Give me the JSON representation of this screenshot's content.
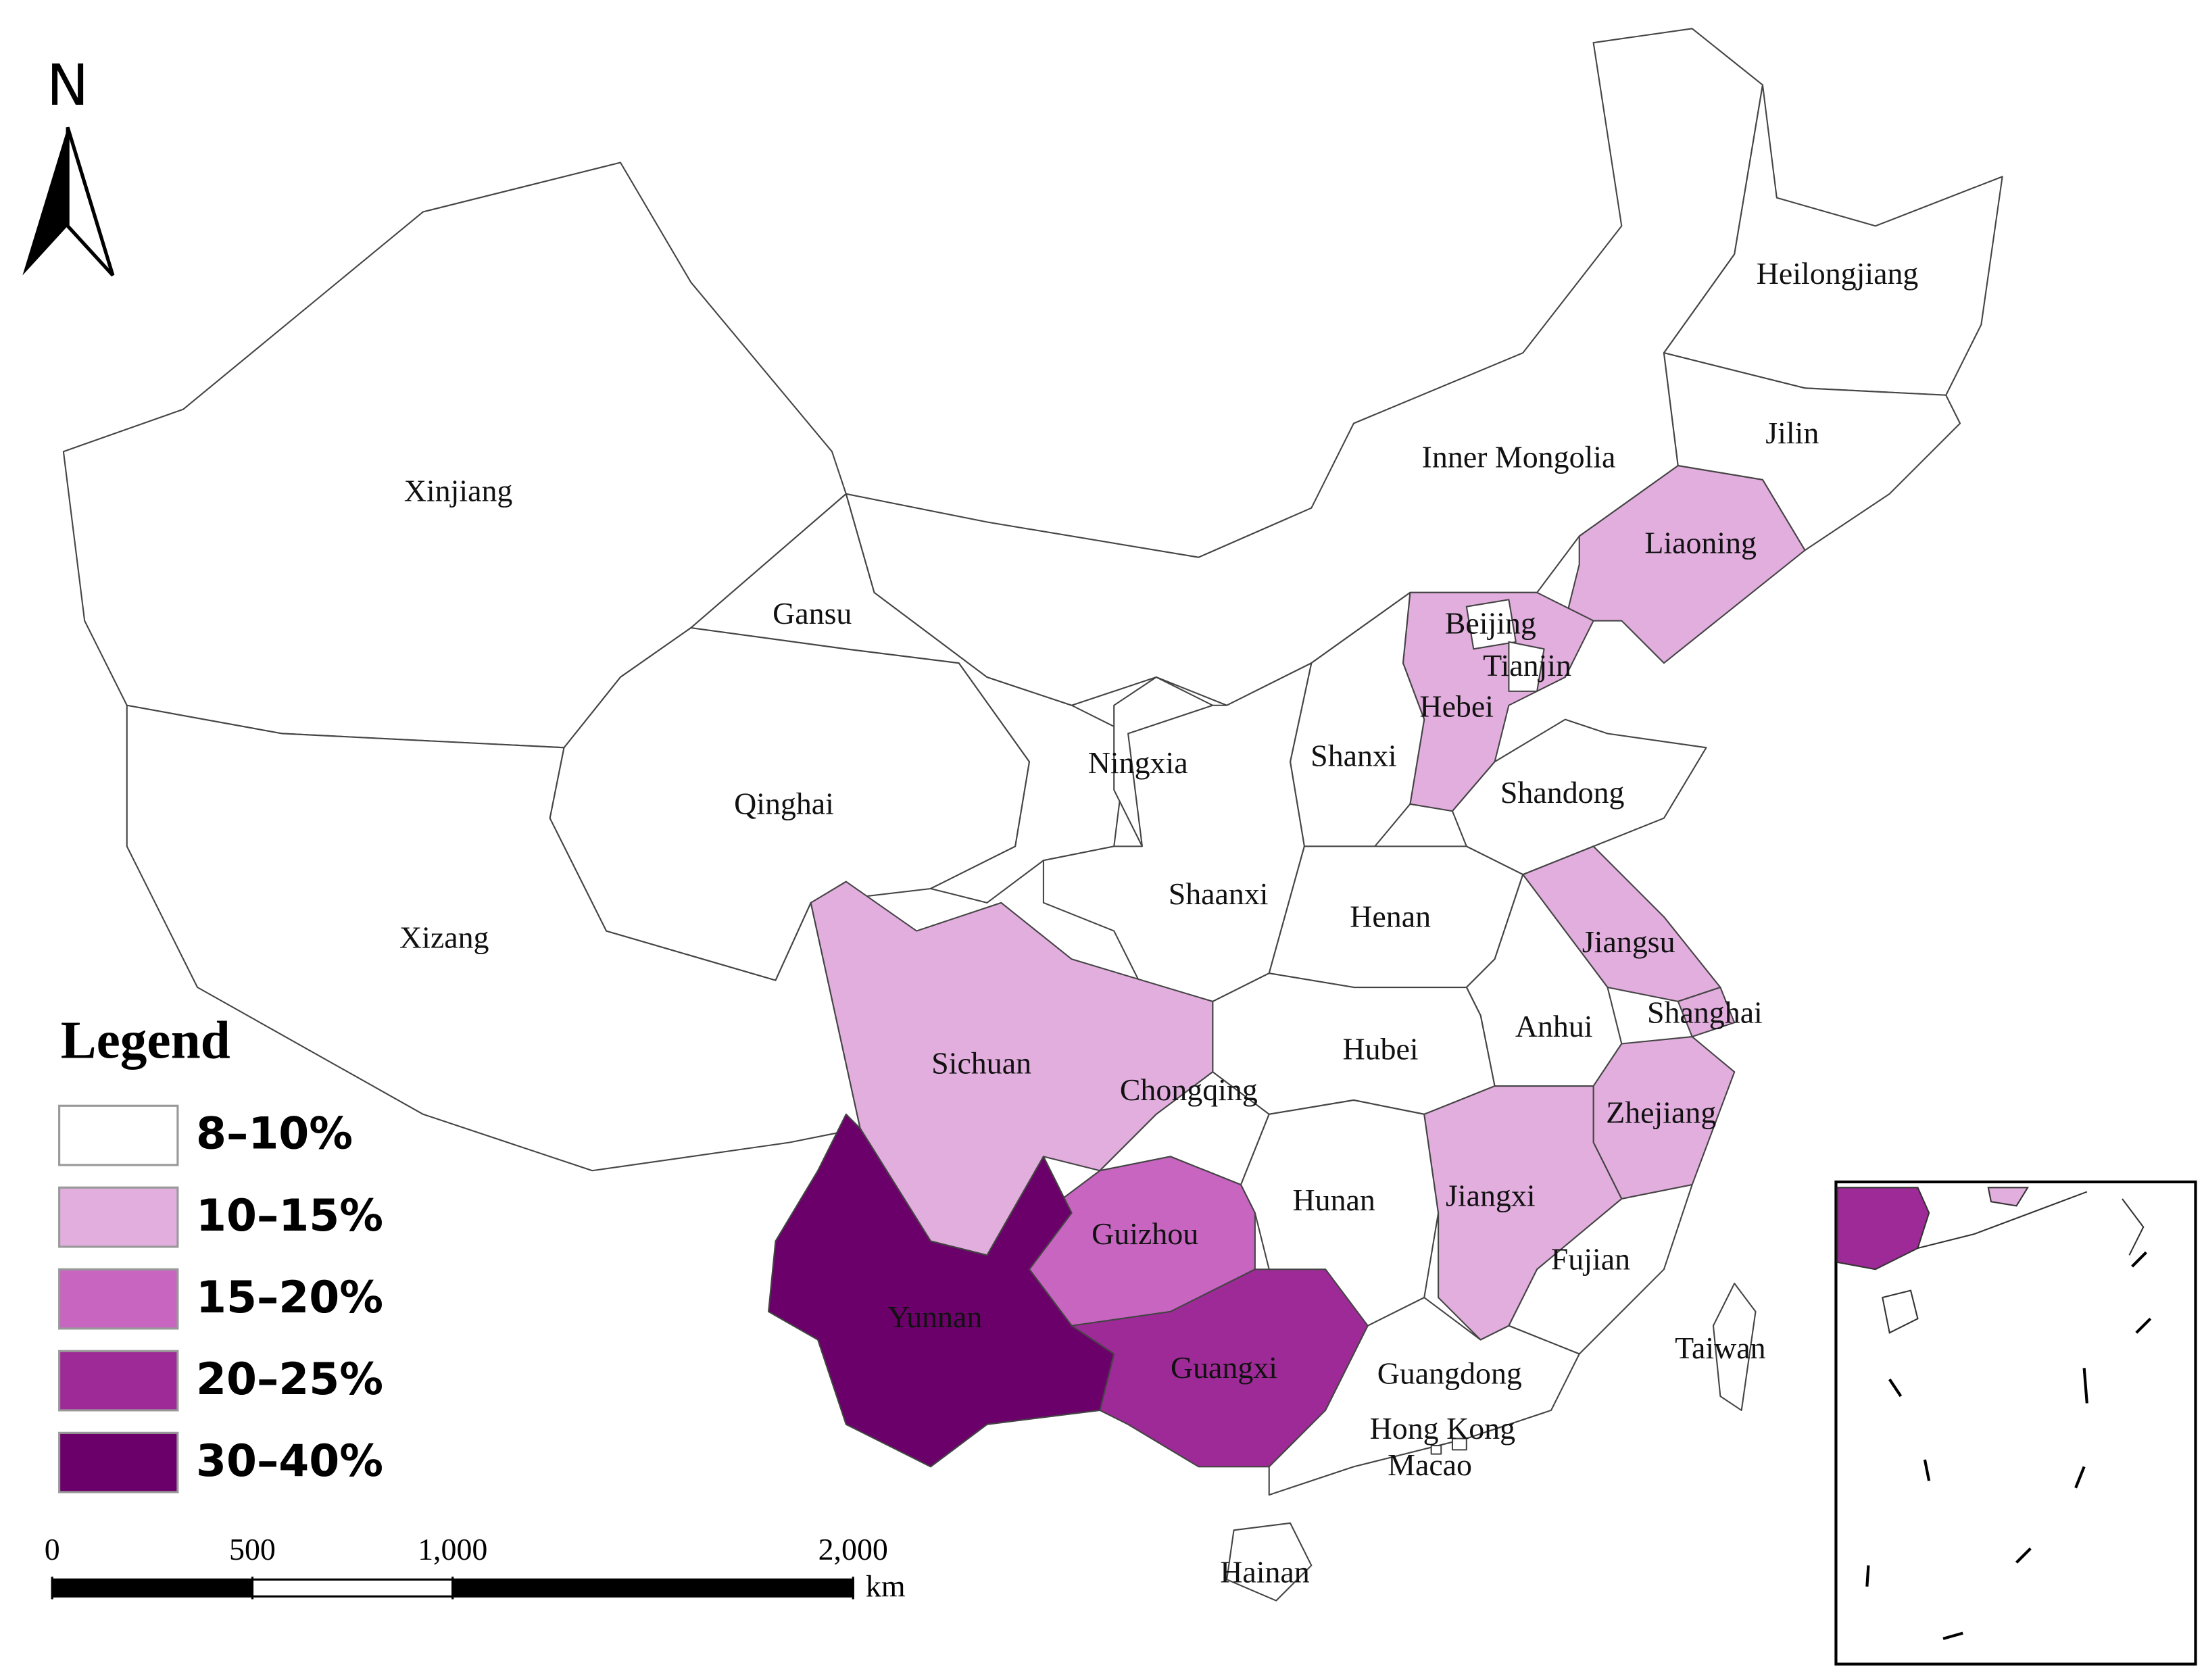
{
  "north": "N",
  "legend": {
    "title": "Legend",
    "classes": [
      {
        "label": "8–10%",
        "color": "#ffffff"
      },
      {
        "label": "10–15%",
        "color": "#e2aede"
      },
      {
        "label": "15–20%",
        "color": "#c765c0"
      },
      {
        "label": "20–25%",
        "color": "#9d2a96"
      },
      {
        "label": "30–40%",
        "color": "#6c006a"
      }
    ]
  },
  "regions": [
    {
      "label": "Xinjiang",
      "class": 0
    },
    {
      "label": "Xizang",
      "class": 0
    },
    {
      "label": "Qinghai",
      "class": 0
    },
    {
      "label": "Gansu",
      "class": 0
    },
    {
      "label": "Inner Mongolia",
      "class": 0
    },
    {
      "label": "Heilongjiang",
      "class": 0
    },
    {
      "label": "Jilin",
      "class": 0
    },
    {
      "label": "Liaoning",
      "class": 1
    },
    {
      "label": "Hebei",
      "class": 1
    },
    {
      "label": "Beijing",
      "class": 0
    },
    {
      "label": "Tianjin",
      "class": 0
    },
    {
      "label": "Shanxi",
      "class": 0
    },
    {
      "label": "Shandong",
      "class": 0
    },
    {
      "label": "Ningxia",
      "class": 0
    },
    {
      "label": "Shaanxi",
      "class": 0
    },
    {
      "label": "Henan",
      "class": 0
    },
    {
      "label": "Jiangsu",
      "class": 1
    },
    {
      "label": "Anhui",
      "class": 0
    },
    {
      "label": "Shanghai",
      "class": 1
    },
    {
      "label": "Hubei",
      "class": 0
    },
    {
      "label": "Sichuan",
      "class": 1
    },
    {
      "label": "Chongqing",
      "class": 0
    },
    {
      "label": "Zhejiang",
      "class": 1
    },
    {
      "label": "Hunan",
      "class": 0
    },
    {
      "label": "Jiangxi",
      "class": 1
    },
    {
      "label": "Fujian",
      "class": 0
    },
    {
      "label": "Guizhou",
      "class": 2
    },
    {
      "label": "Yunnan",
      "class": 4
    },
    {
      "label": "Guangxi",
      "class": 3
    },
    {
      "label": "Guangdong",
      "class": 0
    },
    {
      "label": "Hong Kong",
      "class": 0
    },
    {
      "label": "Macao",
      "class": 0
    },
    {
      "label": "Taiwan",
      "class": 0
    },
    {
      "label": "Hainan",
      "class": 0
    }
  ],
  "scale_bar": {
    "ticks": [
      {
        "value": 0,
        "label": "0"
      },
      {
        "value": 500,
        "label": "500"
      },
      {
        "value": 1000,
        "label": "1,000"
      },
      {
        "value": 2000,
        "label": "2,000"
      }
    ],
    "unit": "km"
  }
}
